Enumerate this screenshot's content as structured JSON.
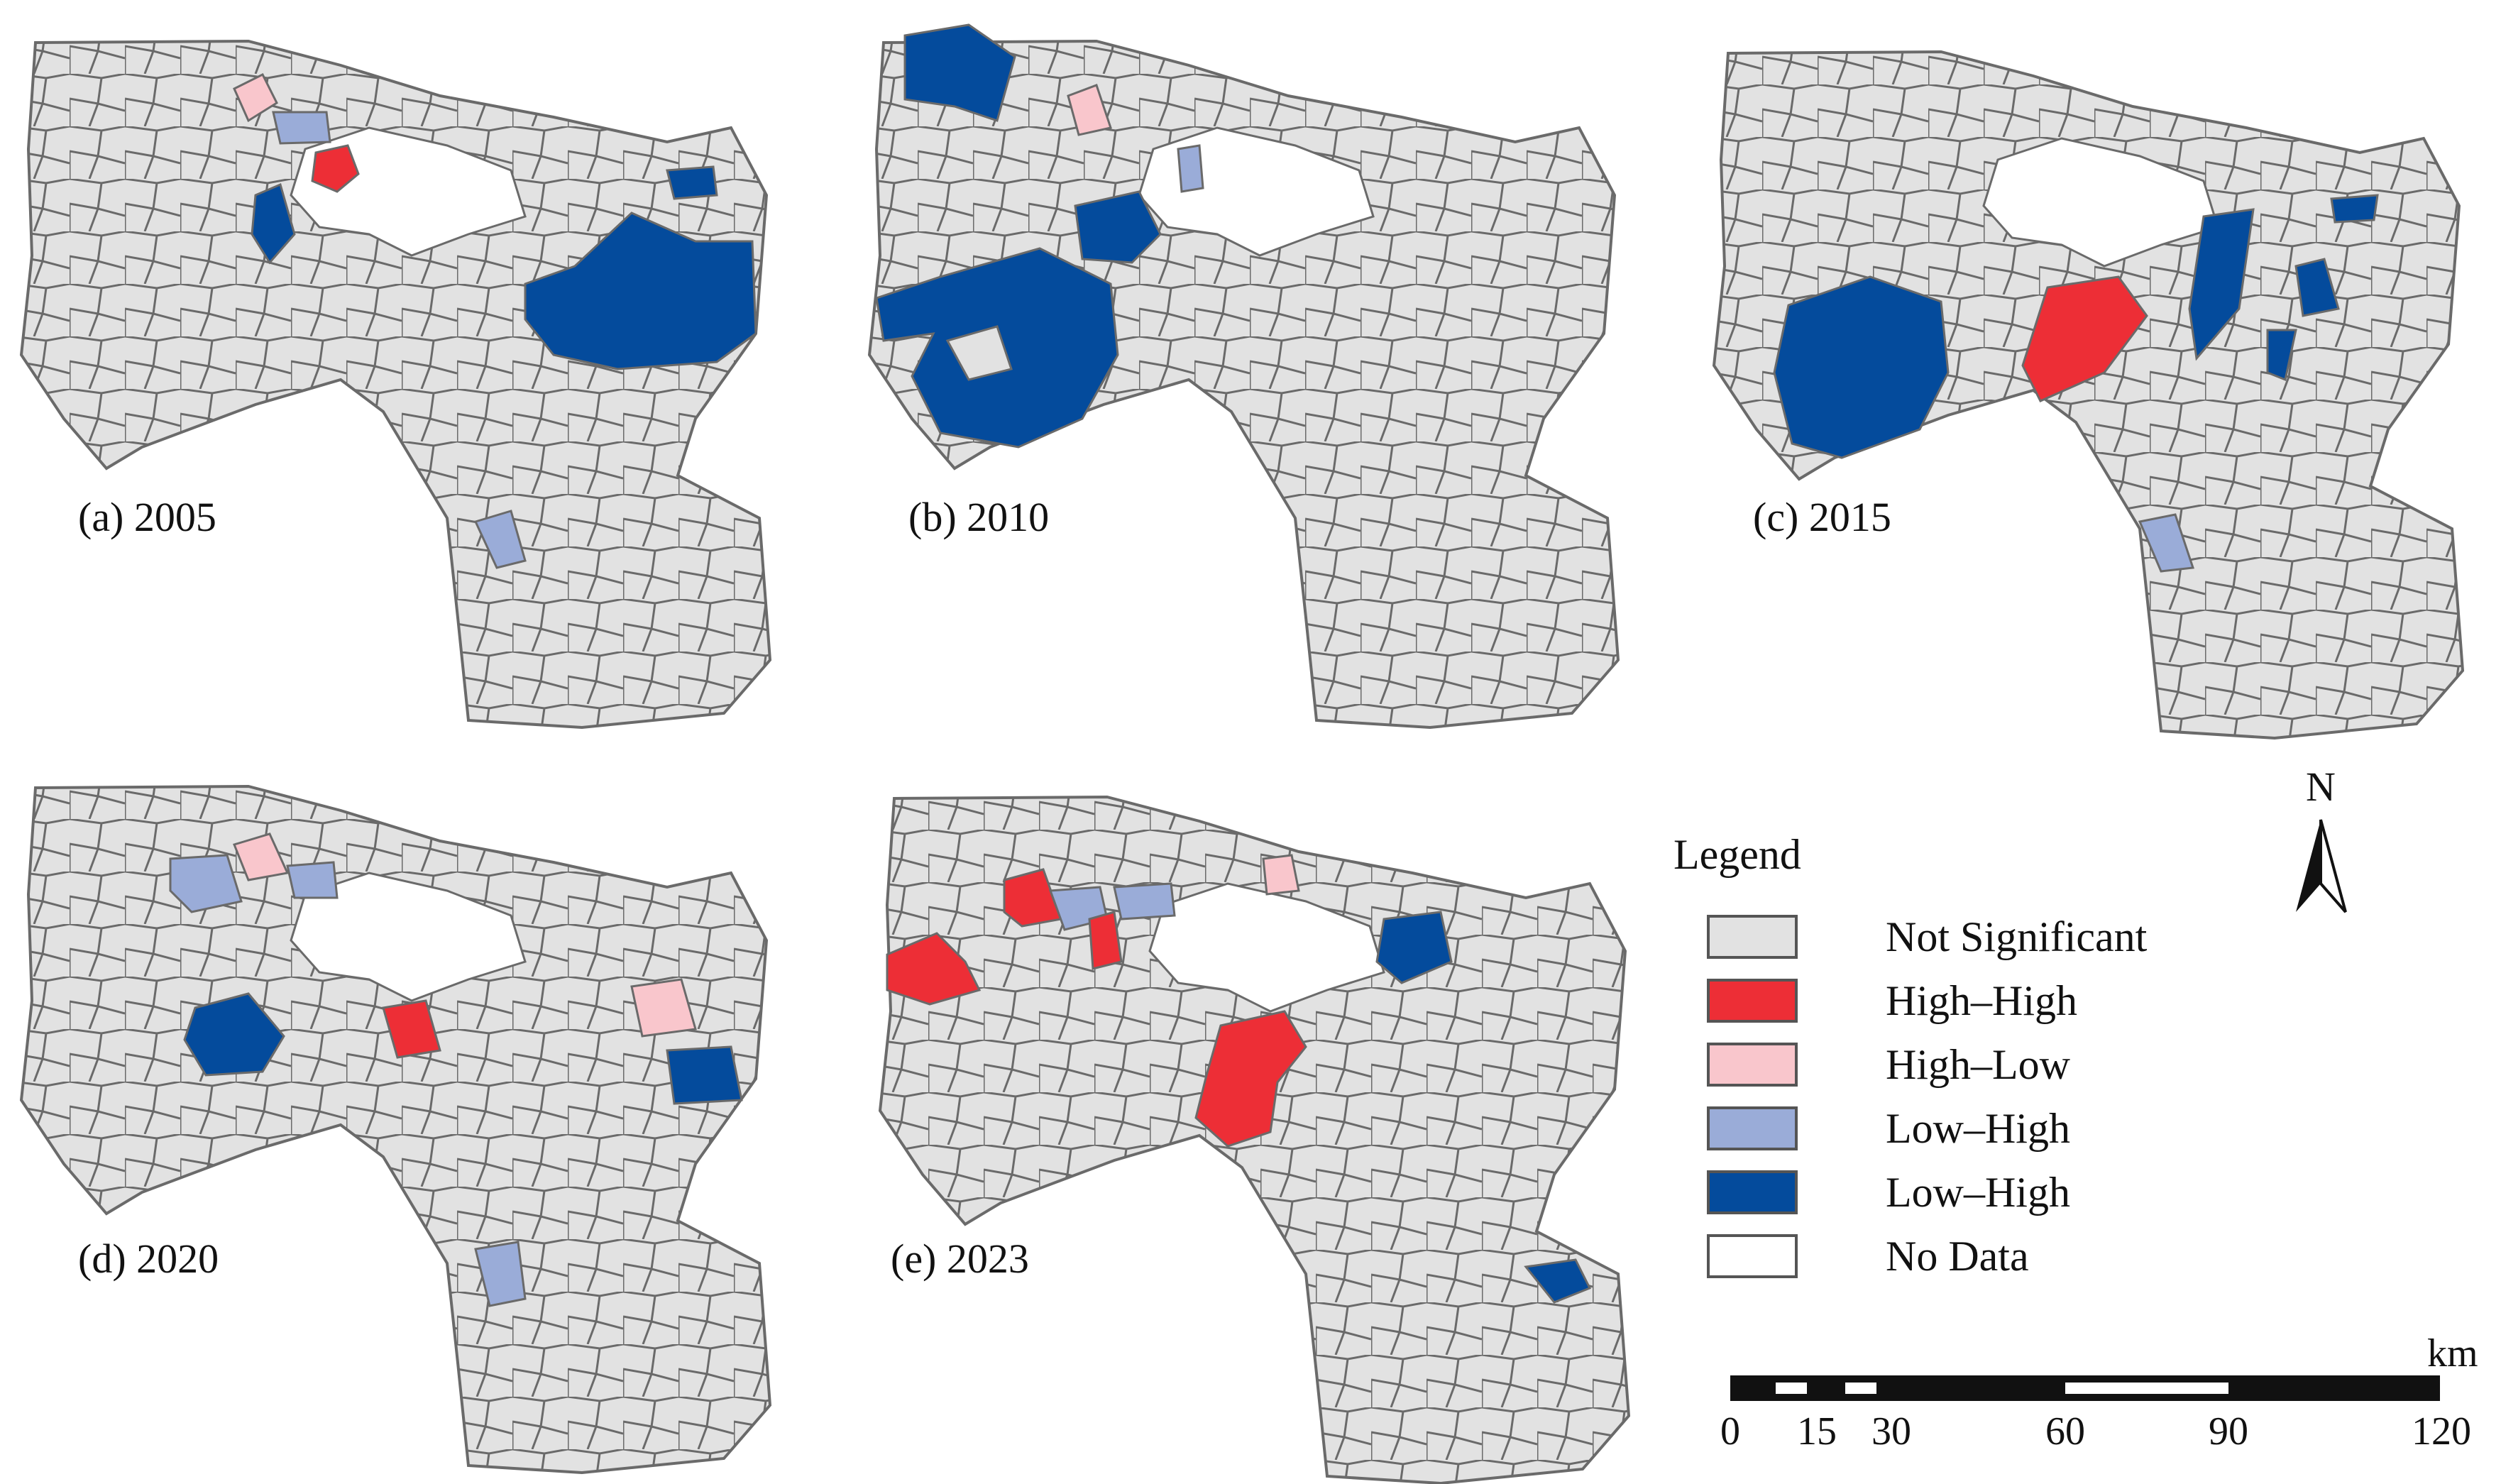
{
  "colors": {
    "not_significant": "#e2e2e2",
    "high_high": "#ed2e36",
    "high_low": "#f9c6cc",
    "low_high_light": "#9aacd8",
    "low_high_dark": "#044b9c",
    "no_data": "#ffffff",
    "border": "#6a6a6a"
  },
  "panels": [
    {
      "id": "a",
      "label": "(a) 2005"
    },
    {
      "id": "b",
      "label": "(b) 2010"
    },
    {
      "id": "c",
      "label": "(c) 2015"
    },
    {
      "id": "d",
      "label": "(d) 2020"
    },
    {
      "id": "e",
      "label": "(e) 2023"
    }
  ],
  "legend": {
    "title": "Legend",
    "items": [
      {
        "label": "Not Significant",
        "color": "#e2e2e2"
      },
      {
        "label": "High–High",
        "color": "#ed2e36"
      },
      {
        "label": "High–Low",
        "color": "#f9c6cc"
      },
      {
        "label": "Low–High",
        "color": "#9aacd8"
      },
      {
        "label": "Low–High",
        "color": "#044b9c"
      },
      {
        "label": "No Data",
        "color": "#ffffff"
      }
    ]
  },
  "north_arrow": {
    "letter": "N"
  },
  "scale_bar": {
    "unit": "km",
    "ticks": [
      "0",
      "15",
      "30",
      "60",
      "90",
      "120"
    ]
  }
}
